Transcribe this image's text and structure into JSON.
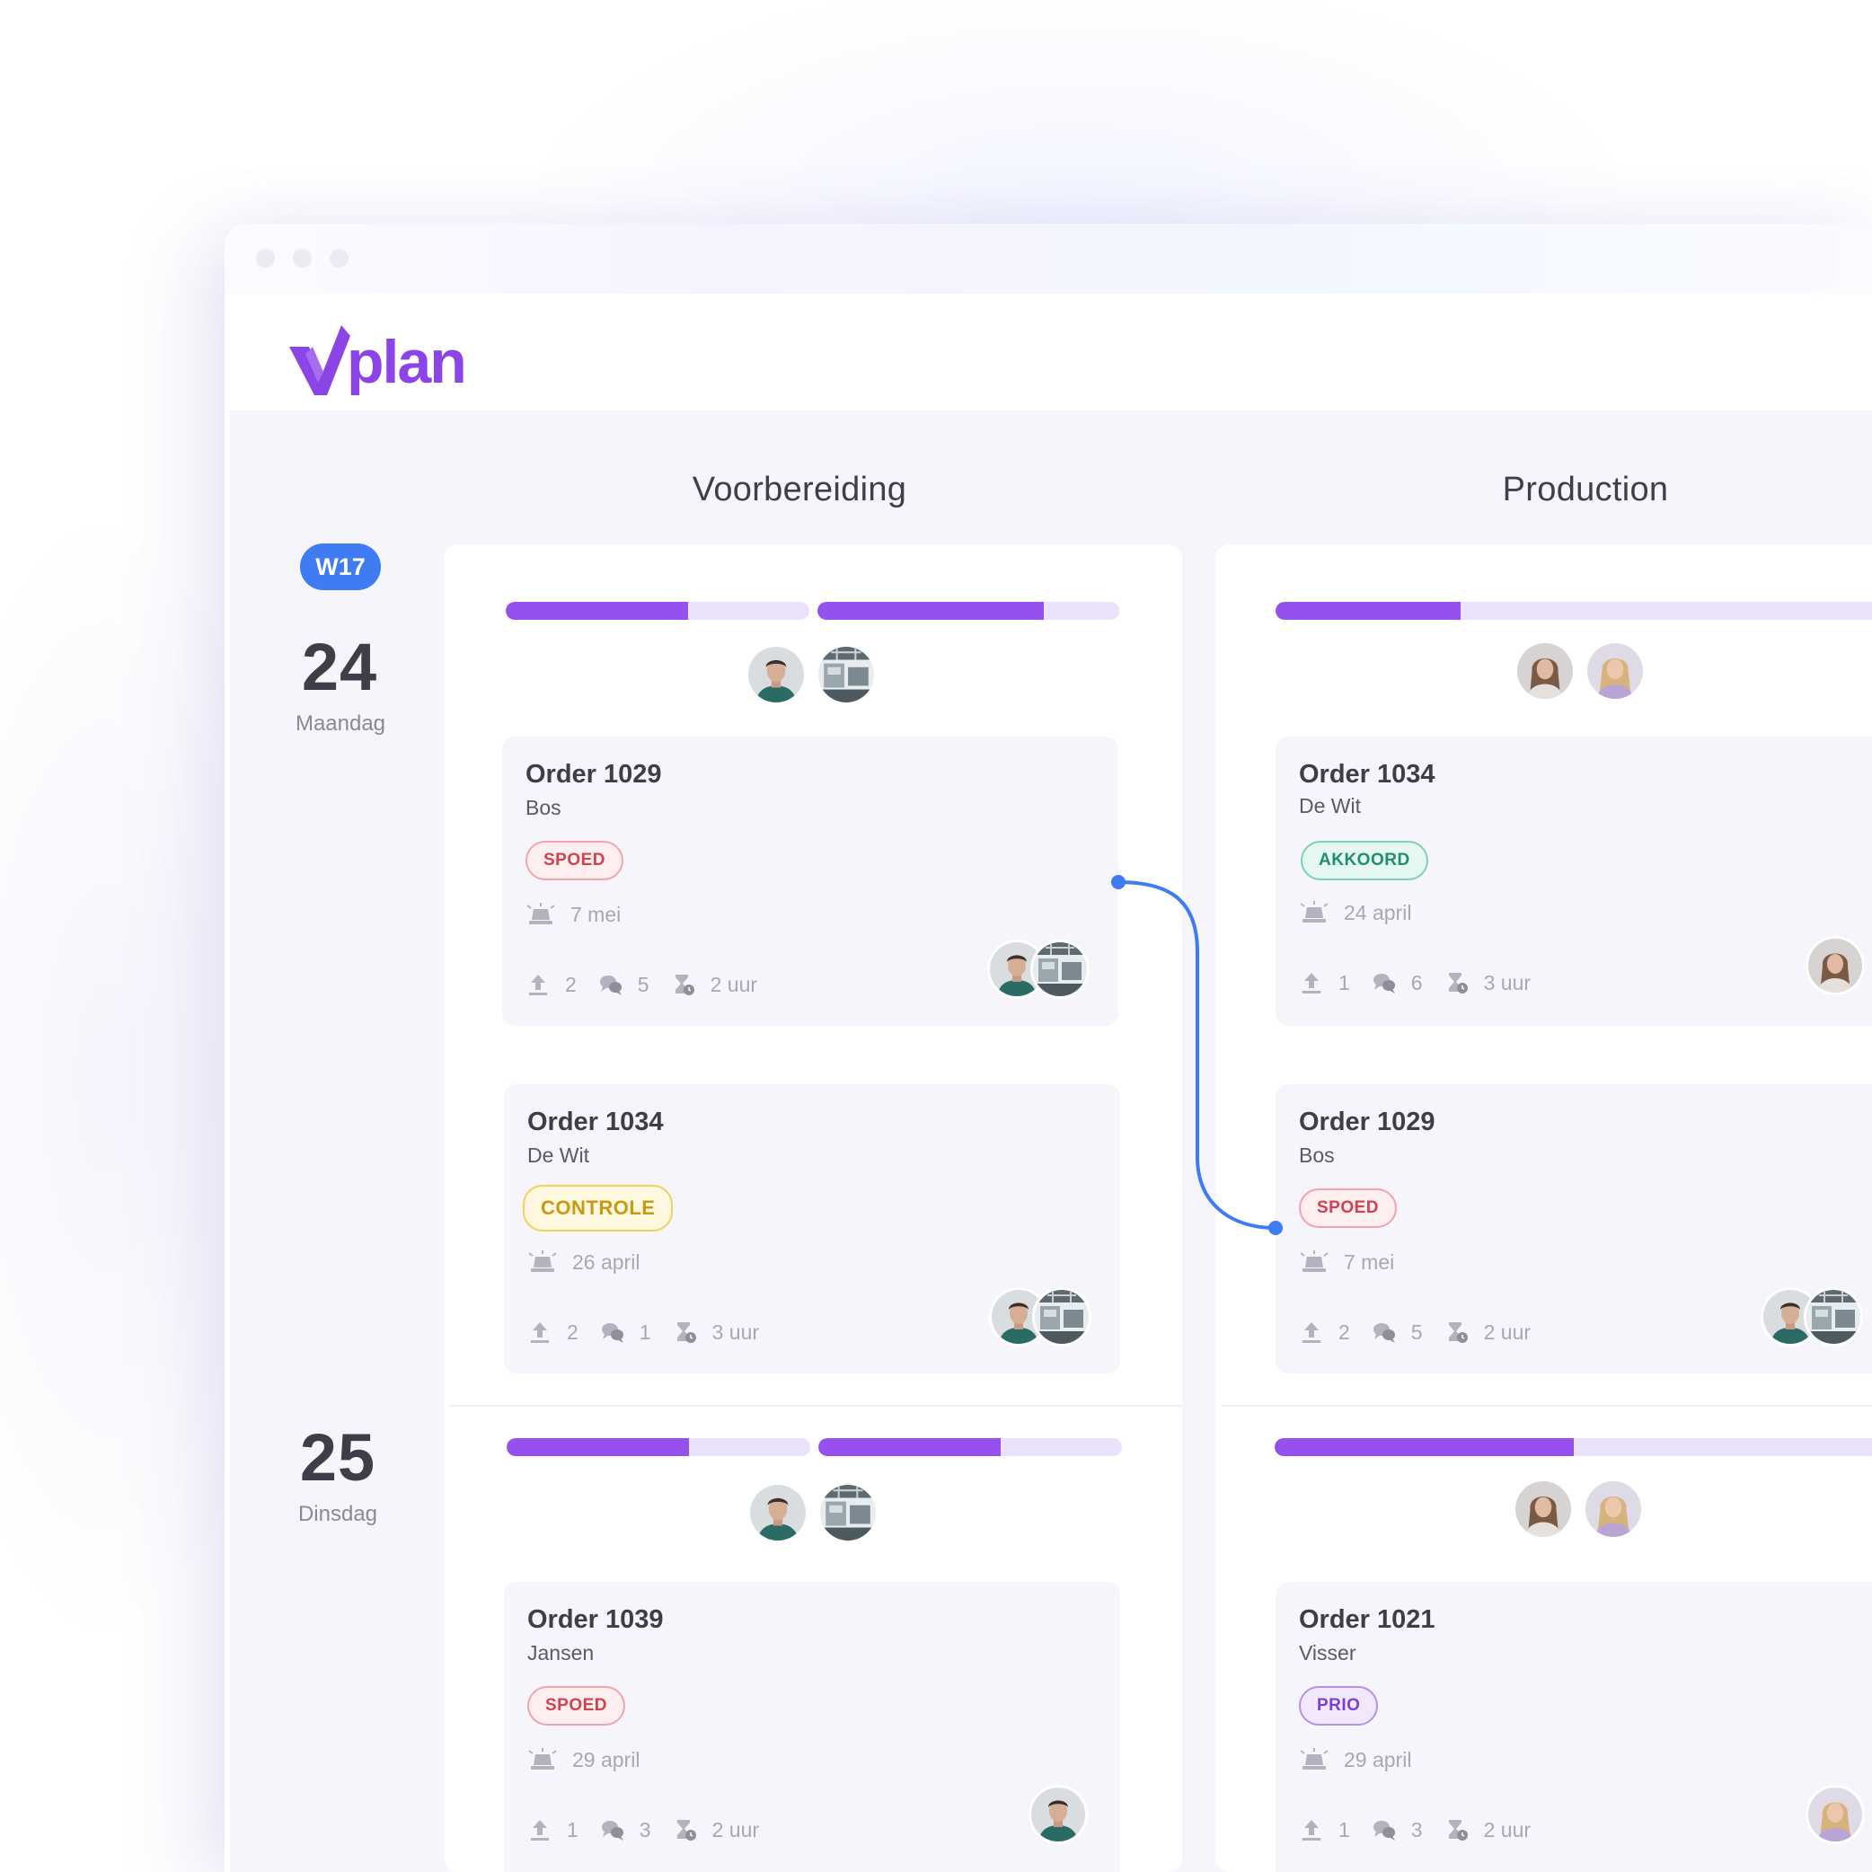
{
  "app": {
    "logo_text": "vplan"
  },
  "week": {
    "badge": "W17"
  },
  "columns": [
    {
      "title": "Voorbereiding"
    },
    {
      "title": "Production"
    }
  ],
  "days": [
    {
      "number": "24",
      "name": "Maandag"
    },
    {
      "number": "25",
      "name": "Dinsdag"
    }
  ],
  "capacity": {
    "voorbereiding_day24": [
      0.6,
      0.75
    ],
    "production_day24": [
      0.31
    ],
    "voorbereiding_day25": [
      0.6,
      0.6
    ],
    "production_day25": [
      0.5
    ]
  },
  "cards": {
    "v24a": {
      "title": "Order 1029",
      "client": "Bos",
      "tag": "SPOED",
      "due": "7 mei",
      "uploads": "2",
      "comments": "5",
      "hours": "2 uur"
    },
    "v24b": {
      "title": "Order 1034",
      "client": "De Wit",
      "tag": "CONTROLE",
      "due": "26 april",
      "uploads": "2",
      "comments": "1",
      "hours": "3 uur"
    },
    "p24a": {
      "title": "Order 1034",
      "client": "De Wit",
      "tag": "AKKOORD",
      "due": "24 april",
      "uploads": "1",
      "comments": "6",
      "hours": "3 uur"
    },
    "p24b": {
      "title": "Order 1029",
      "client": "Bos",
      "tag": "SPOED",
      "due": "7 mei",
      "uploads": "2",
      "comments": "5",
      "hours": "2 uur"
    },
    "v25a": {
      "title": "Order 1039",
      "client": "Jansen",
      "tag": "SPOED",
      "due": "29 april",
      "uploads": "1",
      "comments": "3",
      "hours": "2 uur"
    },
    "p25a": {
      "title": "Order 1021",
      "client": "Visser",
      "tag": "PRIO",
      "due": "29 april",
      "uploads": "1",
      "comments": "3",
      "hours": "2 uur"
    }
  },
  "colors": {
    "accent": "#9550ee",
    "week": "#3f7bf2",
    "link": "#3f7bf2"
  }
}
